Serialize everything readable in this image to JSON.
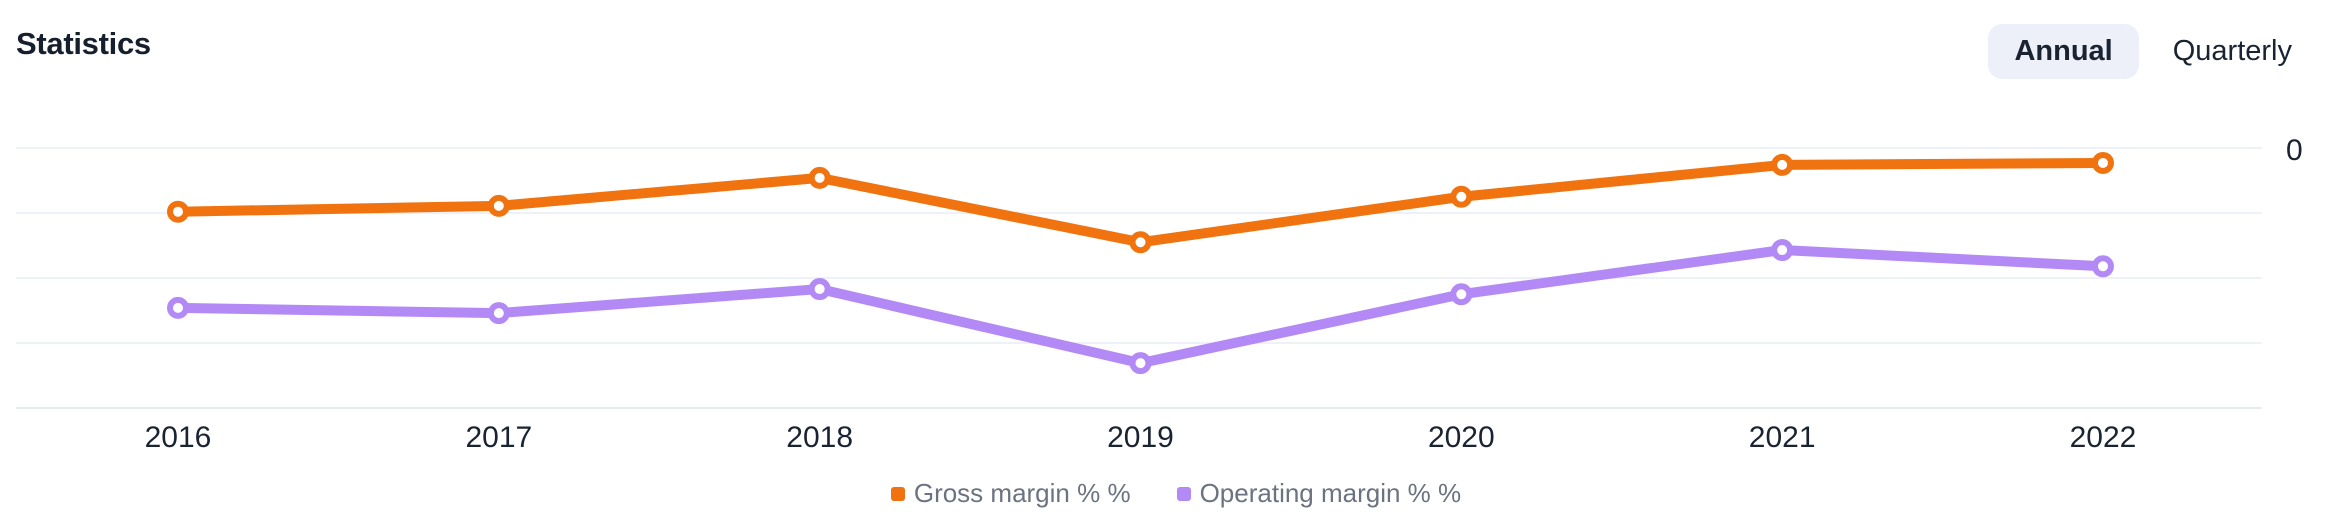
{
  "header": {
    "title": "Statistics",
    "toggle": {
      "annual_label": "Annual",
      "quarterly_label": "Quarterly",
      "selected": "Annual"
    }
  },
  "colors": {
    "gross_margin": "#f0730f",
    "operating_margin": "#b38af5",
    "selected_pill_background": "#edf0f9",
    "gridline": "#eef1f7",
    "axis_line": "#e7ecf3",
    "dark_text": "#1a2332",
    "legend_text": "#6b7280",
    "marker_fill": "#ffffff"
  },
  "chart_data": {
    "type": "line",
    "categories": [
      "2016",
      "2017",
      "2018",
      "2019",
      "2020",
      "2021",
      "2022"
    ],
    "series": [
      {
        "name": "Gross margin % %",
        "color": "#f0730f",
        "values": [
          3.02,
          3.11,
          3.54,
          2.55,
          3.25,
          3.74,
          3.77
        ]
      },
      {
        "name": "Operating margin % %",
        "color": "#b38af5",
        "values": [
          1.54,
          1.46,
          1.83,
          0.69,
          1.75,
          2.43,
          2.18
        ]
      }
    ],
    "title": "Statistics",
    "xlabel": "",
    "ylabel": "",
    "ylim": [
      0,
      4
    ],
    "grid": "horizontal gridlines on, unlabeled; values estimated in gridline units above bottom axis",
    "y_axis_visible_tick_labels": [
      "0"
    ],
    "y_axis_tick_side": "right",
    "legend_position": "bottom-center",
    "marker_style": "open circle (white fill, colored ring)"
  }
}
